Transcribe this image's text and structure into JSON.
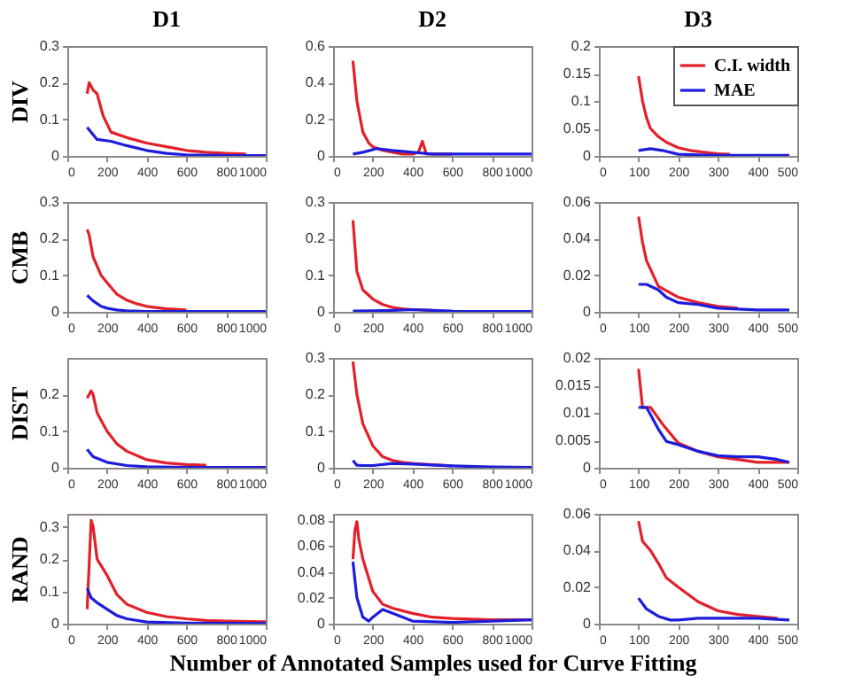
{
  "chart_data": [
    {
      "type": "line",
      "title": "D1",
      "ylabel": "DIV",
      "xlim": [
        0,
        1000
      ],
      "xticks": [
        0,
        200,
        400,
        600,
        800,
        1000
      ],
      "ylim": [
        0,
        0.3
      ],
      "yticks": [
        0,
        0.1,
        0.2,
        0.3
      ],
      "series": [
        {
          "color": "#e3202a",
          "x": [
            100,
            110,
            130,
            150,
            180,
            220,
            300,
            400,
            500,
            600,
            700,
            800,
            900
          ],
          "values": [
            0.17,
            0.2,
            0.18,
            0.17,
            0.11,
            0.065,
            0.05,
            0.035,
            0.025,
            0.015,
            0.01,
            0.007,
            0.005
          ]
        },
        {
          "color": "#1c1cdc",
          "x": [
            100,
            150,
            220,
            300,
            400,
            500,
            600,
            700,
            800,
            1000
          ],
          "values": [
            0.078,
            0.045,
            0.04,
            0.028,
            0.015,
            0.007,
            0.003,
            0.002,
            0.001,
            0.001
          ]
        }
      ]
    },
    {
      "type": "line",
      "title": "D2",
      "xlim": [
        0,
        1000
      ],
      "xticks": [
        0,
        200,
        400,
        600,
        800,
        1000
      ],
      "ylim": [
        0,
        0.6
      ],
      "yticks": [
        0,
        0.2,
        0.4,
        0.6
      ],
      "series": [
        {
          "color": "#e3202a",
          "x": [
            100,
            120,
            150,
            180,
            200,
            250,
            300,
            350,
            400,
            430,
            450,
            470,
            500,
            600
          ],
          "values": [
            0.52,
            0.3,
            0.13,
            0.07,
            0.05,
            0.03,
            0.02,
            0.01,
            0.01,
            0.02,
            0.08,
            0.01,
            0.01,
            0.01
          ]
        },
        {
          "color": "#1c1cdc",
          "x": [
            100,
            150,
            220,
            300,
            400,
            500,
            600,
            800,
            1000
          ],
          "values": [
            0.01,
            0.02,
            0.04,
            0.03,
            0.02,
            0.01,
            0.01,
            0.01,
            0.01
          ]
        }
      ]
    },
    {
      "type": "line",
      "title": "D3",
      "legend": "top right",
      "xlim": [
        0,
        500
      ],
      "xticks": [
        0,
        100,
        200,
        300,
        400,
        500
      ],
      "ylim": [
        0,
        0.2
      ],
      "yticks": [
        0,
        0.05,
        0.1,
        0.15,
        0.2
      ],
      "series": [
        {
          "name": "C.I. width",
          "color": "#e3202a",
          "x": [
            100,
            110,
            120,
            130,
            150,
            170,
            200,
            230,
            260,
            300,
            330
          ],
          "values": [
            0.145,
            0.1,
            0.07,
            0.05,
            0.035,
            0.025,
            0.015,
            0.01,
            0.007,
            0.004,
            0.003
          ]
        },
        {
          "name": "MAE",
          "color": "#1c1cdc",
          "x": [
            100,
            130,
            160,
            200,
            250,
            300,
            400,
            480
          ],
          "values": [
            0.01,
            0.013,
            0.01,
            0.003,
            0.002,
            0.001,
            0.001,
            0.001
          ]
        }
      ]
    },
    {
      "type": "line",
      "ylabel": "CMB",
      "xlim": [
        0,
        1000
      ],
      "xticks": [
        0,
        200,
        400,
        600,
        800,
        1000
      ],
      "ylim": [
        0,
        0.3
      ],
      "yticks": [
        0,
        0.1,
        0.2,
        0.3
      ],
      "series": [
        {
          "color": "#e3202a",
          "x": [
            100,
            110,
            130,
            170,
            200,
            250,
            300,
            350,
            400,
            500,
            600
          ],
          "values": [
            0.225,
            0.21,
            0.15,
            0.1,
            0.08,
            0.048,
            0.032,
            0.022,
            0.015,
            0.008,
            0.005
          ]
        },
        {
          "color": "#1c1cdc",
          "x": [
            100,
            130,
            170,
            200,
            250,
            300,
            400,
            600,
            800,
            1000
          ],
          "values": [
            0.045,
            0.03,
            0.015,
            0.01,
            0.005,
            0.003,
            0.001,
            0.001,
            0.001,
            0.001
          ]
        }
      ]
    },
    {
      "type": "line",
      "xlim": [
        0,
        1000
      ],
      "xticks": [
        0,
        200,
        400,
        600,
        800,
        1000
      ],
      "ylim": [
        0,
        0.3
      ],
      "yticks": [
        0,
        0.1,
        0.2,
        0.3
      ],
      "series": [
        {
          "color": "#e3202a",
          "x": [
            100,
            120,
            150,
            200,
            250,
            300,
            350,
            400,
            500
          ],
          "values": [
            0.25,
            0.11,
            0.06,
            0.035,
            0.02,
            0.012,
            0.008,
            0.006,
            0.004
          ]
        },
        {
          "color": "#1c1cdc",
          "x": [
            100,
            200,
            300,
            400,
            500,
            600,
            800,
            1000
          ],
          "values": [
            0.002,
            0.003,
            0.004,
            0.006,
            0.004,
            0.002,
            0.001,
            0.001
          ]
        }
      ]
    },
    {
      "type": "line",
      "xlim": [
        0,
        500
      ],
      "xticks": [
        0,
        100,
        200,
        300,
        400,
        500
      ],
      "ylim": [
        0,
        0.06
      ],
      "yticks": [
        0,
        0.02,
        0.04,
        0.06
      ],
      "series": [
        {
          "color": "#e3202a",
          "x": [
            100,
            110,
            120,
            150,
            200,
            250,
            300,
            350
          ],
          "values": [
            0.052,
            0.038,
            0.028,
            0.014,
            0.008,
            0.005,
            0.003,
            0.002
          ]
        },
        {
          "color": "#1c1cdc",
          "x": [
            100,
            120,
            150,
            170,
            200,
            250,
            300,
            400,
            480
          ],
          "values": [
            0.015,
            0.015,
            0.012,
            0.008,
            0.005,
            0.004,
            0.002,
            0.001,
            0.001
          ]
        }
      ]
    },
    {
      "type": "line",
      "ylabel": "DIST",
      "xlim": [
        0,
        1000
      ],
      "xticks": [
        0,
        200,
        400,
        600,
        800,
        1000
      ],
      "ylim": [
        0,
        0.3
      ],
      "yticks": [
        0,
        0.1,
        0.2
      ],
      "series": [
        {
          "color": "#e3202a",
          "x": [
            100,
            110,
            120,
            130,
            150,
            200,
            250,
            300,
            400,
            500,
            600,
            700
          ],
          "values": [
            0.19,
            0.2,
            0.21,
            0.2,
            0.15,
            0.1,
            0.065,
            0.045,
            0.022,
            0.013,
            0.009,
            0.007
          ]
        },
        {
          "color": "#1c1cdc",
          "x": [
            100,
            130,
            200,
            300,
            400,
            600,
            800,
            1000
          ],
          "values": [
            0.05,
            0.03,
            0.015,
            0.006,
            0.003,
            0.001,
            0.001,
            0.001
          ]
        }
      ]
    },
    {
      "type": "line",
      "xlim": [
        0,
        1000
      ],
      "xticks": [
        0,
        200,
        400,
        600,
        800,
        1000
      ],
      "ylim": [
        0,
        0.3
      ],
      "yticks": [
        0,
        0.1,
        0.2,
        0.3
      ],
      "series": [
        {
          "color": "#e3202a",
          "x": [
            100,
            120,
            150,
            200,
            250,
            300,
            350,
            400,
            500,
            600
          ],
          "values": [
            0.29,
            0.2,
            0.12,
            0.06,
            0.03,
            0.02,
            0.015,
            0.012,
            0.008,
            0.005
          ]
        },
        {
          "color": "#1c1cdc",
          "x": [
            100,
            120,
            150,
            200,
            300,
            400,
            600,
            800,
            1000
          ],
          "values": [
            0.02,
            0.007,
            0.006,
            0.006,
            0.012,
            0.01,
            0.005,
            0.002,
            0.001
          ]
        }
      ]
    },
    {
      "type": "line",
      "xlim": [
        0,
        500
      ],
      "xticks": [
        0,
        100,
        200,
        300,
        400,
        500
      ],
      "ylim": [
        0,
        0.02
      ],
      "yticks": [
        0,
        0.005,
        0.01,
        0.015,
        0.02
      ],
      "series": [
        {
          "color": "#e3202a",
          "x": [
            100,
            110,
            130,
            160,
            200,
            250,
            300,
            350,
            400,
            450,
            480
          ],
          "values": [
            0.018,
            0.011,
            0.011,
            0.008,
            0.0045,
            0.003,
            0.002,
            0.0015,
            0.001,
            0.001,
            0.001
          ]
        },
        {
          "color": "#1c1cdc",
          "x": [
            100,
            120,
            150,
            170,
            200,
            250,
            300,
            350,
            400,
            450,
            480
          ],
          "values": [
            0.011,
            0.011,
            0.007,
            0.0048,
            0.0042,
            0.003,
            0.0022,
            0.002,
            0.002,
            0.0015,
            0.001
          ]
        }
      ]
    },
    {
      "type": "line",
      "ylabel": "RAND",
      "xlim": [
        0,
        1000
      ],
      "xticks": [
        0,
        200,
        400,
        600,
        800,
        1000
      ],
      "ylim": [
        0,
        0.34
      ],
      "yticks": [
        0,
        0.1,
        0.2,
        0.3
      ],
      "series": [
        {
          "color": "#e3202a",
          "x": [
            100,
            120,
            130,
            150,
            200,
            250,
            300,
            400,
            500,
            600,
            700,
            800,
            1000
          ],
          "values": [
            0.045,
            0.32,
            0.3,
            0.2,
            0.15,
            0.09,
            0.06,
            0.035,
            0.022,
            0.015,
            0.01,
            0.008,
            0.006
          ]
        },
        {
          "color": "#1c1cdc",
          "x": [
            100,
            120,
            150,
            200,
            250,
            300,
            400,
            600,
            800,
            1000
          ],
          "values": [
            0.11,
            0.08,
            0.065,
            0.045,
            0.025,
            0.015,
            0.005,
            0.002,
            0.001,
            0.001
          ]
        }
      ]
    },
    {
      "type": "line",
      "xlabel": "Number of Annotated Samples used for Curve Fitting",
      "xlim": [
        0,
        1000
      ],
      "xticks": [
        0,
        200,
        400,
        600,
        800,
        1000
      ],
      "ylim": [
        0,
        0.085
      ],
      "yticks": [
        0,
        0.02,
        0.04,
        0.06,
        0.08
      ],
      "series": [
        {
          "color": "#e3202a",
          "x": [
            100,
            110,
            120,
            130,
            150,
            180,
            200,
            250,
            300,
            400,
            500,
            600,
            800,
            1000
          ],
          "values": [
            0.05,
            0.072,
            0.079,
            0.065,
            0.05,
            0.035,
            0.025,
            0.015,
            0.012,
            0.008,
            0.005,
            0.004,
            0.003,
            0.003
          ]
        },
        {
          "color": "#1c1cdc",
          "x": [
            100,
            120,
            150,
            180,
            200,
            250,
            300,
            400,
            600,
            800,
            1000
          ],
          "values": [
            0.048,
            0.02,
            0.005,
            0.002,
            0.005,
            0.011,
            0.008,
            0.002,
            0.001,
            0.002,
            0.003
          ]
        }
      ]
    },
    {
      "type": "line",
      "xlim": [
        0,
        500
      ],
      "xticks": [
        0,
        100,
        200,
        300,
        400,
        500
      ],
      "ylim": [
        0,
        0.06
      ],
      "yticks": [
        0,
        0.02,
        0.04,
        0.06
      ],
      "series": [
        {
          "color": "#e3202a",
          "x": [
            100,
            110,
            130,
            150,
            170,
            200,
            250,
            300,
            350,
            400,
            450
          ],
          "values": [
            0.056,
            0.045,
            0.04,
            0.033,
            0.025,
            0.02,
            0.012,
            0.007,
            0.005,
            0.004,
            0.003
          ]
        },
        {
          "color": "#1c1cdc",
          "x": [
            100,
            120,
            150,
            180,
            200,
            250,
            300,
            400,
            480
          ],
          "values": [
            0.014,
            0.008,
            0.004,
            0.002,
            0.002,
            0.003,
            0.003,
            0.003,
            0.002
          ]
        }
      ]
    }
  ]
}
